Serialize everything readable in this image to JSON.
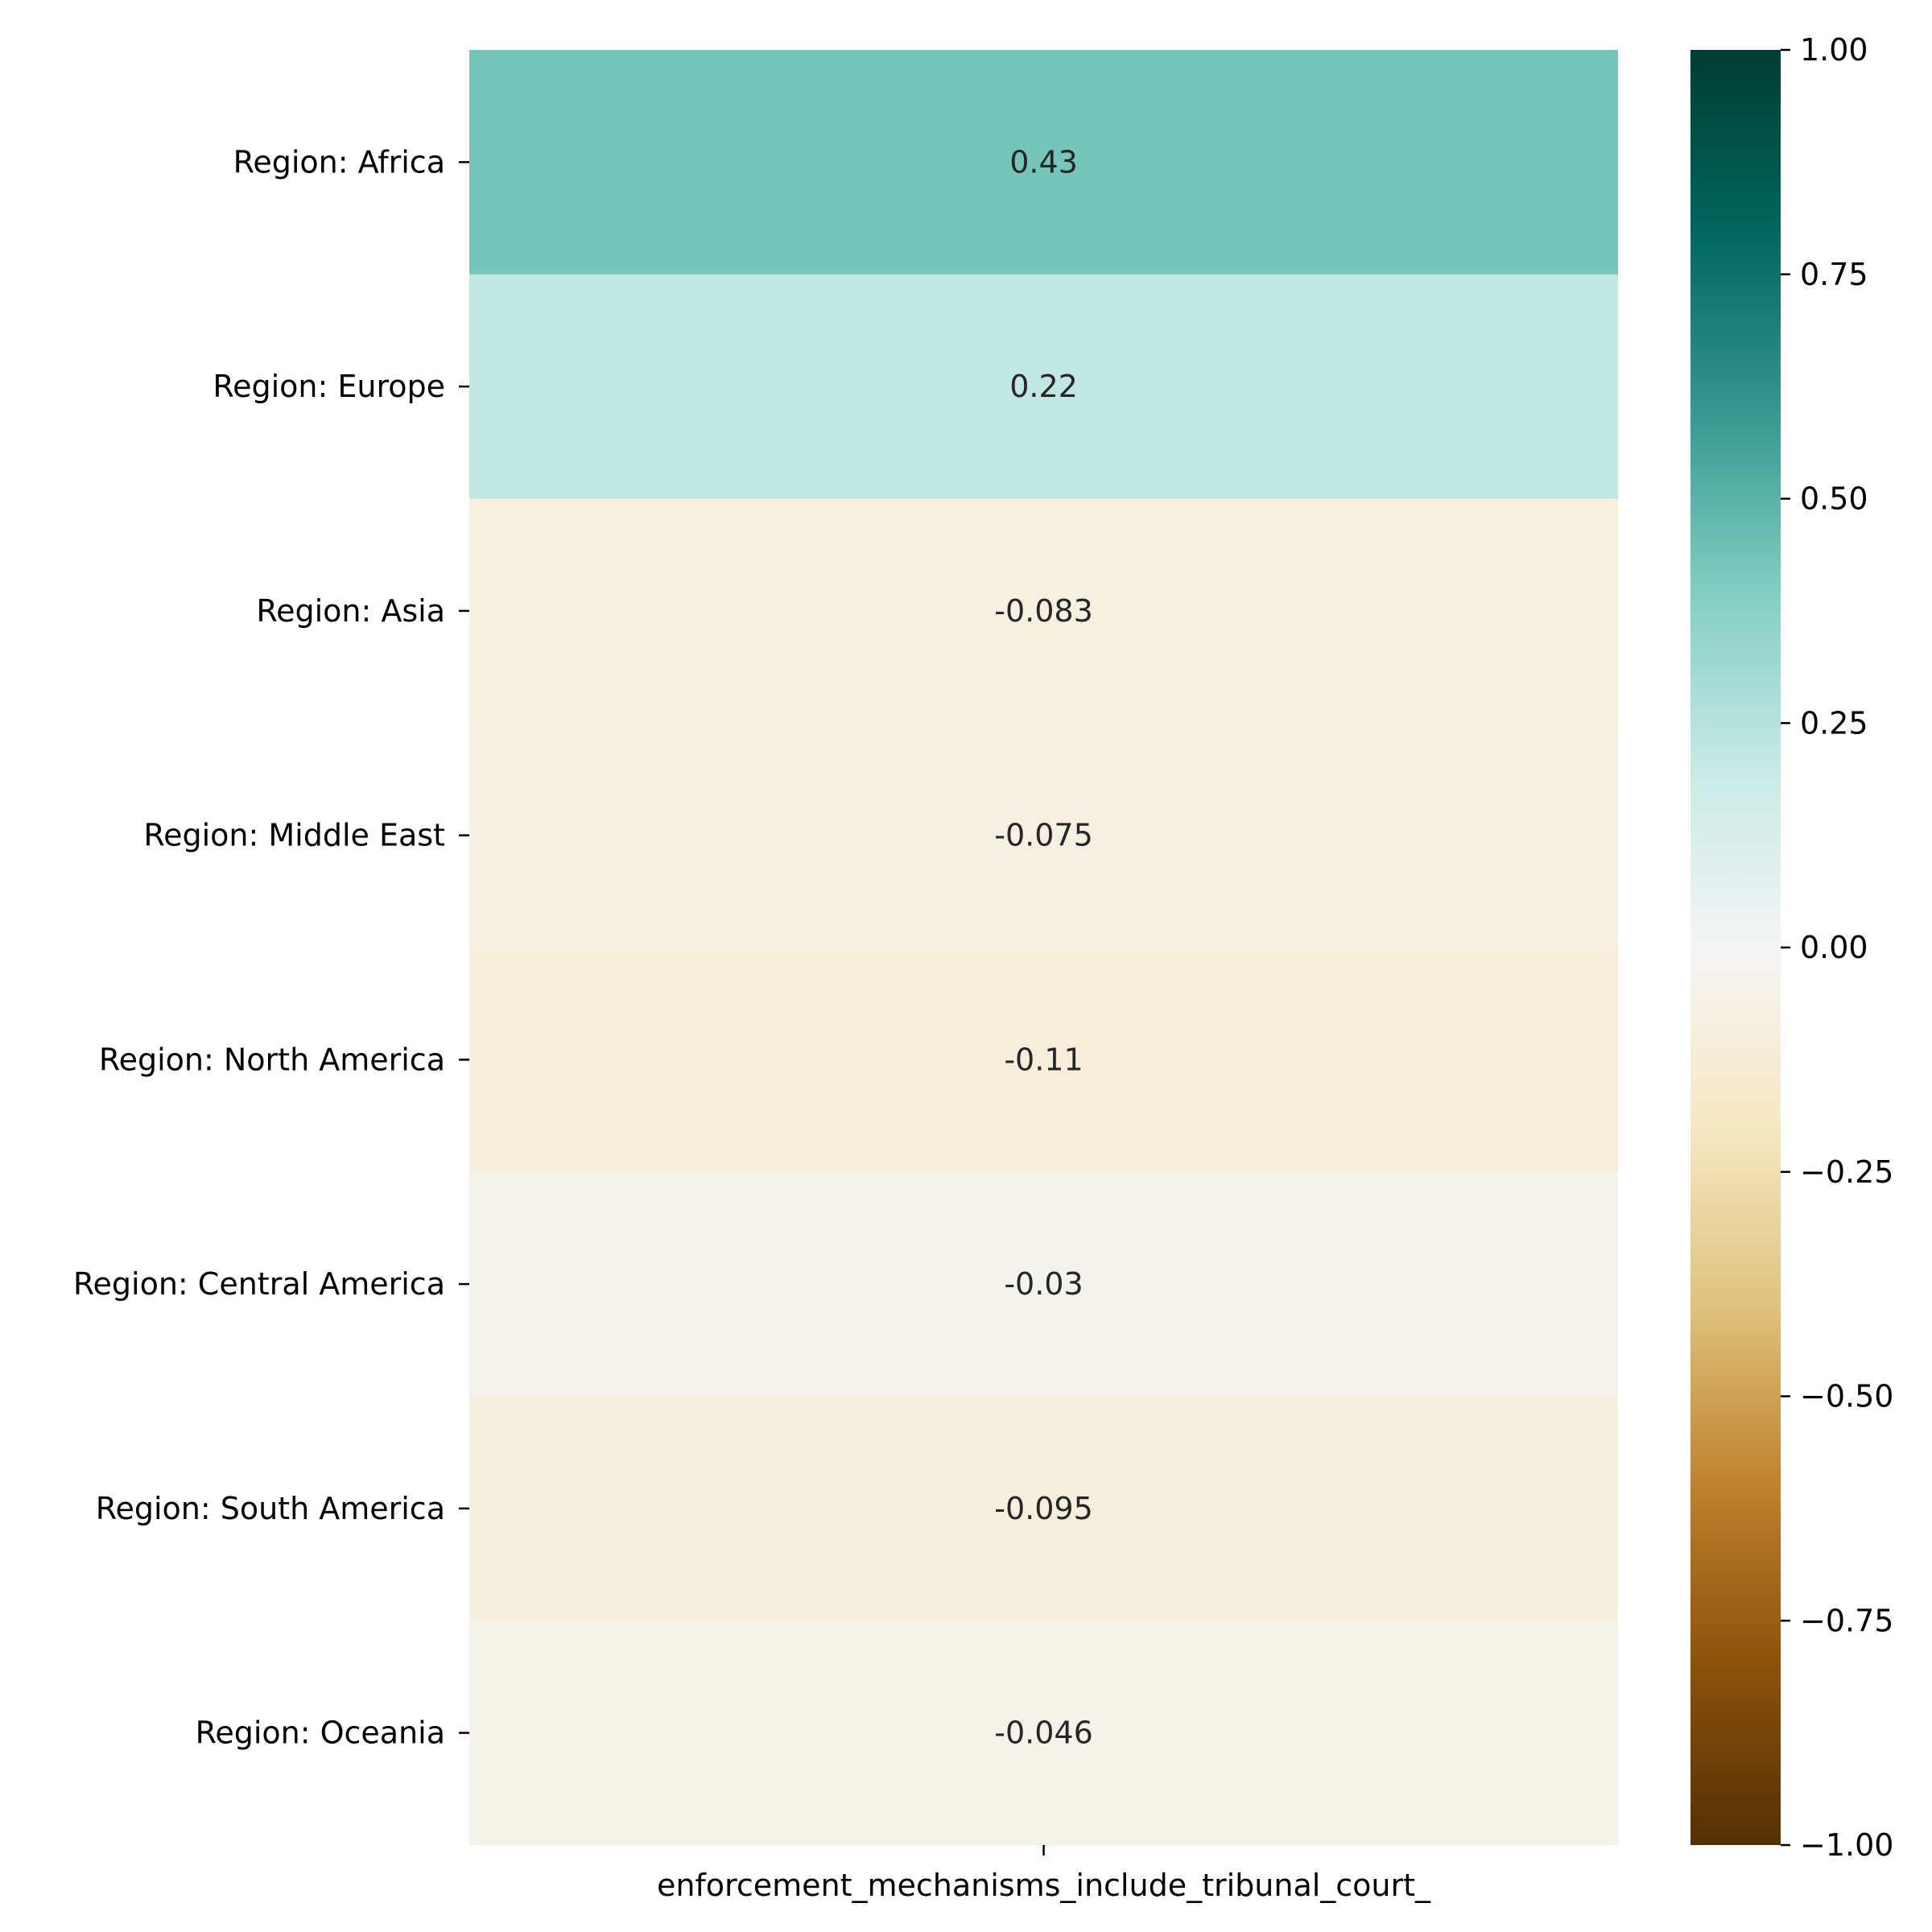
{
  "chart_data": {
    "type": "heatmap",
    "title": "",
    "xlabel": "",
    "ylabel": "",
    "x_categories": [
      "enforcement_mechanisms_include_tribunal_court_"
    ],
    "y_categories": [
      "Region: Africa",
      "Region: Europe",
      "Region: Asia",
      "Region: Middle East",
      "Region: North America",
      "Region: Central America",
      "Region: South America",
      "Region: Oceania"
    ],
    "values": [
      0.43,
      0.22,
      -0.083,
      -0.075,
      -0.11,
      -0.03,
      -0.095,
      -0.046
    ],
    "value_labels": [
      "0.43",
      "0.22",
      "-0.083",
      "-0.075",
      "-0.11",
      "-0.03",
      "-0.095",
      "-0.046"
    ],
    "colormap": "BrBG",
    "vmin": -1.0,
    "vmax": 1.0,
    "colorbar": {
      "ticks": [
        1.0,
        0.75,
        0.5,
        0.25,
        0.0,
        -0.25,
        -0.5,
        -0.75,
        -1.0
      ],
      "tick_labels": [
        "1.00",
        "0.75",
        "0.50",
        "0.25",
        "0.00",
        "−0.25",
        "−0.50",
        "−0.75",
        "−1.00"
      ],
      "stops": [
        [
          -1.0,
          "#543005"
        ],
        [
          -0.8,
          "#8c510a"
        ],
        [
          -0.6,
          "#bf812d"
        ],
        [
          -0.4,
          "#dfc27d"
        ],
        [
          -0.2,
          "#f6e8c3"
        ],
        [
          0.0,
          "#f5f5f5"
        ],
        [
          0.2,
          "#c7eae5"
        ],
        [
          0.4,
          "#80cdc1"
        ],
        [
          0.6,
          "#35978f"
        ],
        [
          0.8,
          "#01665e"
        ],
        [
          1.0,
          "#003c30"
        ]
      ]
    },
    "legend": "colorbar-right",
    "grid": false
  }
}
